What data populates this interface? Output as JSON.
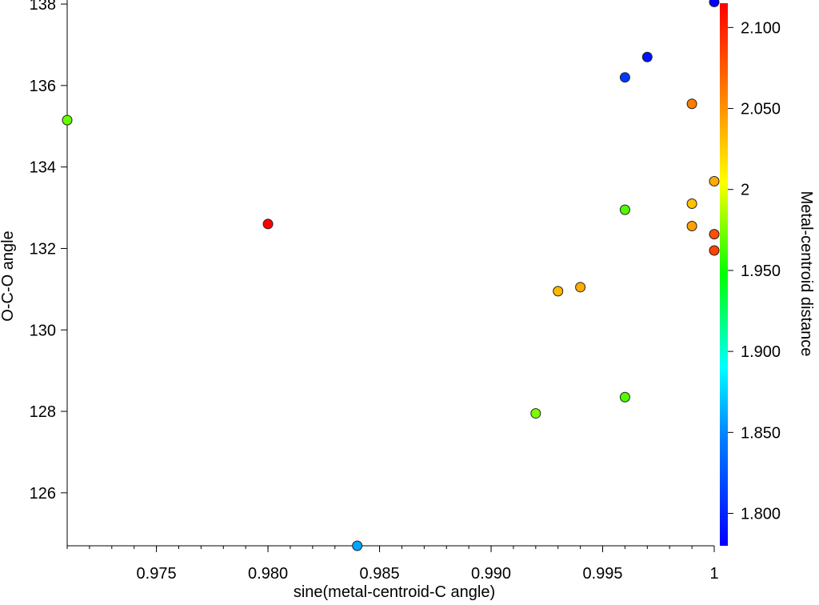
{
  "chart_data": {
    "type": "scatter",
    "xlabel": "sine(metal-centroid-C angle)",
    "ylabel": "O-C-O  angle",
    "colorbar_label": "Metal-centroid distance",
    "xlim": [
      0.971,
      1.0
    ],
    "ylim": [
      124.7,
      138.1
    ],
    "x_ticks": [
      0.975,
      0.98,
      0.985,
      0.99,
      0.995,
      1.0
    ],
    "x_tick_labels": [
      "0.975",
      "0.980",
      "0.985",
      "0.990",
      "0.995",
      "1"
    ],
    "x_minor_step": 0.001,
    "y_ticks": [
      126,
      128,
      130,
      132,
      134,
      136,
      138
    ],
    "y_tick_labels": [
      "126",
      "128",
      "130",
      "132",
      "134",
      "136",
      "138"
    ],
    "colorbar_range": [
      1.78,
      2.115
    ],
    "colorbar_ticks": [
      1.8,
      1.85,
      1.9,
      1.95,
      2.0,
      2.05,
      2.1
    ],
    "colorbar_tick_labels": [
      "1.800",
      "1.850",
      "1.900",
      "1.950",
      "2",
      "2.050",
      "2.100"
    ],
    "grid": false,
    "points": [
      {
        "x": 0.971,
        "y": 135.15,
        "c": 1.97
      },
      {
        "x": 0.98,
        "y": 132.6,
        "c": 2.115
      },
      {
        "x": 0.984,
        "y": 124.7,
        "c": 1.86
      },
      {
        "x": 0.992,
        "y": 127.95,
        "c": 1.975
      },
      {
        "x": 0.993,
        "y": 130.95,
        "c": 2.035
      },
      {
        "x": 0.994,
        "y": 131.05,
        "c": 2.04
      },
      {
        "x": 0.996,
        "y": 136.2,
        "c": 1.81
      },
      {
        "x": 0.996,
        "y": 132.95,
        "c": 1.965
      },
      {
        "x": 0.996,
        "y": 128.35,
        "c": 1.965
      },
      {
        "x": 0.997,
        "y": 136.7,
        "c": 1.79
      },
      {
        "x": 0.999,
        "y": 135.55,
        "c": 2.06
      },
      {
        "x": 0.999,
        "y": 133.1,
        "c": 2.03
      },
      {
        "x": 0.999,
        "y": 132.55,
        "c": 2.045
      },
      {
        "x": 1.0,
        "y": 138.05,
        "c": 1.78
      },
      {
        "x": 1.0,
        "y": 133.65,
        "c": 2.04
      },
      {
        "x": 1.0,
        "y": 132.35,
        "c": 2.08
      },
      {
        "x": 1.0,
        "y": 131.95,
        "c": 2.085
      }
    ]
  }
}
